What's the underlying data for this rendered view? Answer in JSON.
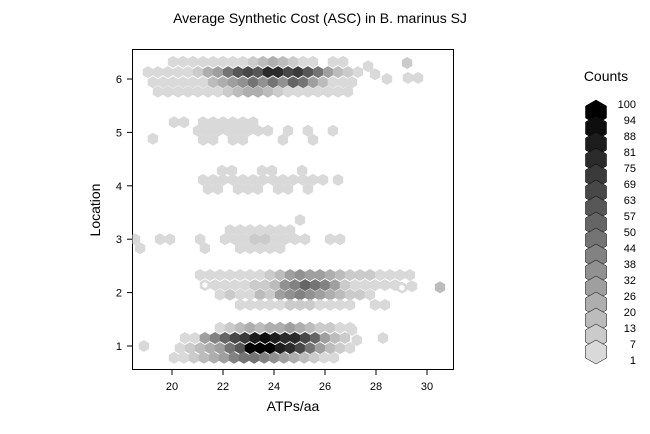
{
  "chart_data": {
    "type": "hexbin",
    "title": "Average Synthetic Cost (ASC) in B. marinus SJ",
    "xlabel": "ATPs/aa",
    "ylabel": "Location",
    "x_ticks": [
      20,
      22,
      24,
      26,
      28,
      30
    ],
    "y_ticks": [
      1,
      2,
      3,
      4,
      5,
      6
    ],
    "xlim": [
      18.43,
      31.06
    ],
    "ylim": [
      0.55,
      6.56
    ],
    "grid": false,
    "panel_background": "#ffffff",
    "legend": {
      "title": "Counts",
      "values": [
        100,
        94,
        88,
        81,
        75,
        69,
        63,
        57,
        50,
        44,
        38,
        32,
        26,
        20,
        13,
        7,
        1
      ],
      "position": "right"
    },
    "color_ramp": {
      "low": "#d9d9d9",
      "high": "#000000",
      "bins": 16,
      "breaks": [
        1,
        7,
        13,
        20,
        26,
        32,
        38,
        44,
        50,
        57,
        63,
        69,
        75,
        81,
        88,
        94,
        100
      ]
    },
    "hexes": [
      [
        20.04,
        6.32,
        3
      ],
      [
        20.43,
        6.32,
        3
      ],
      [
        20.82,
        6.32,
        3
      ],
      [
        21.22,
        6.32,
        3
      ],
      [
        21.61,
        6.32,
        3
      ],
      [
        22.0,
        6.32,
        3
      ],
      [
        22.39,
        6.32,
        3
      ],
      [
        22.78,
        6.32,
        3
      ],
      [
        23.18,
        6.32,
        8
      ],
      [
        23.57,
        6.32,
        14
      ],
      [
        23.96,
        6.32,
        20
      ],
      [
        24.35,
        6.32,
        14
      ],
      [
        24.75,
        6.32,
        8
      ],
      [
        25.14,
        6.32,
        3
      ],
      [
        25.53,
        6.32,
        3
      ],
      [
        26.31,
        6.32,
        3
      ],
      [
        26.71,
        6.32,
        3
      ],
      [
        29.22,
        6.3,
        8
      ],
      [
        19.06,
        6.13,
        3
      ],
      [
        19.45,
        6.13,
        3
      ],
      [
        19.84,
        6.13,
        3
      ],
      [
        20.24,
        6.13,
        3
      ],
      [
        20.63,
        6.13,
        3
      ],
      [
        21.02,
        6.13,
        8
      ],
      [
        21.41,
        6.13,
        20
      ],
      [
        21.8,
        6.13,
        26
      ],
      [
        22.2,
        6.13,
        44
      ],
      [
        22.59,
        6.13,
        57
      ],
      [
        22.98,
        6.13,
        63
      ],
      [
        23.37,
        6.13,
        57
      ],
      [
        23.76,
        6.13,
        75
      ],
      [
        24.16,
        6.13,
        75
      ],
      [
        24.55,
        6.13,
        63
      ],
      [
        24.94,
        6.13,
        69
      ],
      [
        25.33,
        6.13,
        57
      ],
      [
        25.73,
        6.13,
        44
      ],
      [
        26.12,
        6.13,
        26
      ],
      [
        26.51,
        6.13,
        14
      ],
      [
        26.9,
        6.13,
        8
      ],
      [
        27.29,
        6.13,
        3
      ],
      [
        19.25,
        5.94,
        3
      ],
      [
        19.65,
        5.94,
        3
      ],
      [
        20.04,
        5.94,
        3
      ],
      [
        20.43,
        5.94,
        3
      ],
      [
        20.82,
        5.94,
        3
      ],
      [
        21.22,
        5.94,
        3
      ],
      [
        21.61,
        5.94,
        13
      ],
      [
        22.0,
        5.94,
        20
      ],
      [
        22.39,
        5.94,
        26
      ],
      [
        22.78,
        5.94,
        32
      ],
      [
        23.18,
        5.94,
        44
      ],
      [
        23.57,
        5.94,
        32
      ],
      [
        23.96,
        5.94,
        44
      ],
      [
        24.35,
        5.94,
        32
      ],
      [
        24.75,
        5.94,
        50
      ],
      [
        25.14,
        5.94,
        44
      ],
      [
        25.53,
        5.94,
        26
      ],
      [
        25.92,
        5.94,
        13
      ],
      [
        26.31,
        5.94,
        3
      ],
      [
        26.71,
        5.94,
        3
      ],
      [
        27.06,
        5.94,
        3
      ],
      [
        19.45,
        5.76,
        3
      ],
      [
        19.84,
        5.76,
        3
      ],
      [
        20.24,
        5.76,
        3
      ],
      [
        20.63,
        5.76,
        3
      ],
      [
        21.02,
        5.76,
        3
      ],
      [
        21.41,
        5.76,
        3
      ],
      [
        21.8,
        5.76,
        3
      ],
      [
        22.2,
        5.76,
        8
      ],
      [
        22.59,
        5.76,
        14
      ],
      [
        22.98,
        5.76,
        20
      ],
      [
        23.37,
        5.76,
        20
      ],
      [
        23.76,
        5.76,
        14
      ],
      [
        24.16,
        5.76,
        8
      ],
      [
        24.55,
        5.76,
        3
      ],
      [
        24.94,
        5.76,
        3
      ],
      [
        25.33,
        5.76,
        3
      ],
      [
        25.73,
        5.76,
        3
      ],
      [
        26.12,
        5.76,
        3
      ],
      [
        26.51,
        5.76,
        3
      ],
      [
        26.9,
        5.76,
        3
      ],
      [
        27.69,
        6.24,
        3
      ],
      [
        27.96,
        6.09,
        3
      ],
      [
        28.43,
        6.0,
        3
      ],
      [
        29.25,
        6.02,
        3
      ],
      [
        29.65,
        6.02,
        3
      ],
      [
        20.08,
        5.19,
        3
      ],
      [
        20.47,
        5.19,
        3
      ],
      [
        21.22,
        5.19,
        3
      ],
      [
        21.61,
        5.19,
        3
      ],
      [
        22.0,
        5.19,
        3
      ],
      [
        22.39,
        5.19,
        3
      ],
      [
        22.78,
        5.19,
        3
      ],
      [
        23.18,
        5.19,
        3
      ],
      [
        21.02,
        5.03,
        3
      ],
      [
        21.41,
        5.03,
        3
      ],
      [
        21.8,
        5.03,
        3
      ],
      [
        22.2,
        5.03,
        3
      ],
      [
        22.59,
        5.03,
        3
      ],
      [
        22.98,
        5.03,
        3
      ],
      [
        23.37,
        5.03,
        3
      ],
      [
        23.76,
        5.03,
        3
      ],
      [
        24.55,
        5.03,
        3
      ],
      [
        25.33,
        5.03,
        3
      ],
      [
        26.31,
        5.03,
        3
      ],
      [
        19.25,
        4.88,
        3
      ],
      [
        21.22,
        4.86,
        3
      ],
      [
        21.61,
        4.86,
        3
      ],
      [
        22.39,
        4.86,
        3
      ],
      [
        22.78,
        4.86,
        3
      ],
      [
        24.35,
        4.86,
        3
      ],
      [
        25.53,
        4.86,
        3
      ],
      [
        21.96,
        4.28,
        3
      ],
      [
        22.35,
        4.28,
        3
      ],
      [
        23.53,
        4.28,
        3
      ],
      [
        23.92,
        4.28,
        3
      ],
      [
        25.1,
        4.28,
        3
      ],
      [
        21.22,
        4.11,
        3
      ],
      [
        21.61,
        4.11,
        3
      ],
      [
        22.0,
        4.11,
        3
      ],
      [
        22.39,
        4.11,
        3
      ],
      [
        22.78,
        4.11,
        3
      ],
      [
        23.18,
        4.11,
        3
      ],
      [
        23.57,
        4.11,
        3
      ],
      [
        23.96,
        4.11,
        3
      ],
      [
        24.35,
        4.11,
        3
      ],
      [
        24.75,
        4.11,
        3
      ],
      [
        25.14,
        4.11,
        3
      ],
      [
        25.53,
        4.11,
        3
      ],
      [
        25.92,
        4.11,
        3
      ],
      [
        26.51,
        4.11,
        3
      ],
      [
        21.41,
        3.94,
        3
      ],
      [
        21.8,
        3.94,
        3
      ],
      [
        22.59,
        3.94,
        3
      ],
      [
        22.98,
        3.94,
        3
      ],
      [
        23.37,
        3.94,
        3
      ],
      [
        24.16,
        3.94,
        3
      ],
      [
        24.55,
        3.94,
        3
      ],
      [
        25.33,
        3.94,
        3
      ],
      [
        25.02,
        3.36,
        3
      ],
      [
        22.27,
        3.17,
        3
      ],
      [
        22.67,
        3.17,
        3
      ],
      [
        23.06,
        3.17,
        3
      ],
      [
        23.45,
        3.17,
        3
      ],
      [
        23.84,
        3.17,
        3
      ],
      [
        24.24,
        3.17,
        3
      ],
      [
        24.63,
        3.17,
        3
      ],
      [
        18.55,
        3.0,
        3
      ],
      [
        19.53,
        3.0,
        3
      ],
      [
        19.92,
        3.0,
        3
      ],
      [
        21.1,
        3.0,
        3
      ],
      [
        22.08,
        3.0,
        3
      ],
      [
        22.47,
        3.0,
        3
      ],
      [
        22.86,
        3.0,
        3
      ],
      [
        23.25,
        3.0,
        8
      ],
      [
        23.65,
        3.0,
        8
      ],
      [
        24.04,
        3.0,
        3
      ],
      [
        24.43,
        3.0,
        3
      ],
      [
        24.82,
        3.0,
        3
      ],
      [
        25.22,
        3.0,
        3
      ],
      [
        26.2,
        3.0,
        3
      ],
      [
        26.59,
        3.0,
        3
      ],
      [
        18.75,
        2.83,
        3
      ],
      [
        21.29,
        2.83,
        3
      ],
      [
        22.67,
        2.83,
        3
      ],
      [
        23.06,
        2.83,
        3
      ],
      [
        23.45,
        2.83,
        3
      ],
      [
        23.84,
        2.83,
        3
      ],
      [
        24.24,
        2.83,
        3
      ],
      [
        21.1,
        2.33,
        3
      ],
      [
        21.49,
        2.33,
        3
      ],
      [
        21.88,
        2.33,
        3
      ],
      [
        22.27,
        2.33,
        3
      ],
      [
        22.67,
        2.33,
        3
      ],
      [
        23.06,
        2.33,
        3
      ],
      [
        23.45,
        2.33,
        3
      ],
      [
        23.84,
        2.33,
        8
      ],
      [
        24.24,
        2.33,
        14
      ],
      [
        24.63,
        2.33,
        26
      ],
      [
        25.02,
        2.33,
        32
      ],
      [
        25.41,
        2.33,
        26
      ],
      [
        25.8,
        2.33,
        26
      ],
      [
        26.2,
        2.33,
        20
      ],
      [
        26.59,
        2.33,
        14
      ],
      [
        26.98,
        2.33,
        8
      ],
      [
        27.37,
        2.33,
        8
      ],
      [
        27.76,
        2.33,
        8
      ],
      [
        28.16,
        2.33,
        3
      ],
      [
        28.55,
        2.33,
        3
      ],
      [
        28.94,
        2.33,
        3
      ],
      [
        29.33,
        2.33,
        3
      ],
      [
        21.69,
        2.14,
        3
      ],
      [
        22.08,
        2.14,
        3
      ],
      [
        22.47,
        2.14,
        3
      ],
      [
        22.86,
        2.14,
        3
      ],
      [
        23.25,
        2.14,
        8
      ],
      [
        23.65,
        2.14,
        8
      ],
      [
        24.04,
        2.14,
        14
      ],
      [
        24.43,
        2.14,
        32
      ],
      [
        24.82,
        2.14,
        38
      ],
      [
        25.22,
        2.14,
        50
      ],
      [
        25.61,
        2.14,
        44
      ],
      [
        26.0,
        2.14,
        38
      ],
      [
        26.39,
        2.14,
        26
      ],
      [
        26.78,
        2.14,
        8
      ],
      [
        27.18,
        2.14,
        3
      ],
      [
        27.57,
        2.14,
        3
      ],
      [
        27.96,
        2.14,
        3
      ],
      [
        28.35,
        2.14,
        3
      ],
      [
        28.75,
        2.14,
        3
      ],
      [
        29.41,
        2.12,
        3
      ],
      [
        30.51,
        2.1,
        13
      ],
      [
        21.88,
        1.96,
        3
      ],
      [
        22.27,
        1.96,
        8
      ],
      [
        22.67,
        1.96,
        3
      ],
      [
        23.06,
        1.96,
        3
      ],
      [
        23.45,
        1.96,
        14
      ],
      [
        23.84,
        1.96,
        8
      ],
      [
        24.24,
        1.96,
        26
      ],
      [
        24.63,
        1.96,
        32
      ],
      [
        25.02,
        1.96,
        38
      ],
      [
        25.41,
        1.96,
        32
      ],
      [
        25.8,
        1.96,
        26
      ],
      [
        26.2,
        1.96,
        20
      ],
      [
        26.59,
        1.96,
        14
      ],
      [
        26.98,
        1.96,
        8
      ],
      [
        27.37,
        1.96,
        8
      ],
      [
        27.76,
        1.96,
        3
      ],
      [
        22.67,
        1.77,
        3
      ],
      [
        23.06,
        1.77,
        3
      ],
      [
        23.45,
        1.77,
        3
      ],
      [
        23.84,
        1.77,
        3
      ],
      [
        24.24,
        1.77,
        3
      ],
      [
        24.63,
        1.77,
        8
      ],
      [
        25.02,
        1.77,
        8
      ],
      [
        25.41,
        1.77,
        8
      ],
      [
        25.8,
        1.77,
        3
      ],
      [
        26.2,
        1.77,
        3
      ],
      [
        26.59,
        1.77,
        3
      ],
      [
        26.98,
        1.77,
        3
      ],
      [
        27.96,
        1.77,
        3
      ],
      [
        28.35,
        1.77,
        3
      ],
      [
        21.88,
        1.34,
        3
      ],
      [
        22.27,
        1.34,
        8
      ],
      [
        22.67,
        1.34,
        13
      ],
      [
        23.06,
        1.34,
        20
      ],
      [
        23.45,
        1.34,
        13
      ],
      [
        23.84,
        1.34,
        20
      ],
      [
        24.24,
        1.34,
        20
      ],
      [
        24.63,
        1.34,
        26
      ],
      [
        25.02,
        1.34,
        20
      ],
      [
        25.41,
        1.34,
        13
      ],
      [
        25.8,
        1.34,
        8
      ],
      [
        26.2,
        1.34,
        8
      ],
      [
        26.59,
        1.34,
        3
      ],
      [
        26.98,
        1.34,
        3
      ],
      [
        20.51,
        1.15,
        3
      ],
      [
        20.9,
        1.15,
        3
      ],
      [
        21.29,
        1.15,
        26
      ],
      [
        21.69,
        1.15,
        38
      ],
      [
        22.08,
        1.15,
        50
      ],
      [
        22.47,
        1.15,
        63
      ],
      [
        22.86,
        1.15,
        69
      ],
      [
        23.25,
        1.15,
        81
      ],
      [
        23.65,
        1.15,
        88
      ],
      [
        24.04,
        1.15,
        81
      ],
      [
        24.43,
        1.15,
        75
      ],
      [
        24.82,
        1.15,
        75
      ],
      [
        25.22,
        1.15,
        63
      ],
      [
        25.61,
        1.15,
        50
      ],
      [
        26.0,
        1.15,
        26
      ],
      [
        26.39,
        1.15,
        13
      ],
      [
        26.78,
        1.15,
        8
      ],
      [
        20.31,
        0.96,
        3
      ],
      [
        20.71,
        0.96,
        8
      ],
      [
        21.1,
        0.96,
        13
      ],
      [
        21.49,
        0.96,
        20
      ],
      [
        21.88,
        0.96,
        26
      ],
      [
        22.27,
        0.96,
        44
      ],
      [
        22.67,
        0.96,
        57
      ],
      [
        23.06,
        0.96,
        94
      ],
      [
        23.45,
        0.96,
        100
      ],
      [
        23.84,
        0.96,
        100
      ],
      [
        24.24,
        0.96,
        81
      ],
      [
        24.63,
        0.96,
        75
      ],
      [
        25.02,
        0.96,
        63
      ],
      [
        25.41,
        0.96,
        44
      ],
      [
        25.8,
        0.96,
        26
      ],
      [
        26.2,
        0.96,
        13
      ],
      [
        26.59,
        0.96,
        8
      ],
      [
        26.98,
        0.96,
        3
      ],
      [
        20.08,
        0.78,
        3
      ],
      [
        20.47,
        0.78,
        3
      ],
      [
        20.86,
        0.78,
        8
      ],
      [
        21.25,
        0.78,
        13
      ],
      [
        21.65,
        0.78,
        20
      ],
      [
        22.04,
        0.78,
        26
      ],
      [
        22.43,
        0.78,
        38
      ],
      [
        22.82,
        0.78,
        44
      ],
      [
        23.22,
        0.78,
        44
      ],
      [
        23.61,
        0.78,
        38
      ],
      [
        24.0,
        0.78,
        32
      ],
      [
        24.39,
        0.78,
        26
      ],
      [
        24.78,
        0.78,
        20
      ],
      [
        25.18,
        0.78,
        13
      ],
      [
        25.57,
        0.78,
        8
      ],
      [
        25.96,
        0.78,
        3
      ],
      [
        26.35,
        0.78,
        3
      ],
      [
        18.9,
        1.0,
        3
      ],
      [
        27.06,
        1.3,
        3
      ],
      [
        27.25,
        1.11,
        3
      ],
      [
        28.27,
        1.15,
        3
      ]
    ],
    "open_hexes": [
      [
        21.29,
        2.14
      ],
      [
        29.02,
        2.09
      ]
    ]
  }
}
